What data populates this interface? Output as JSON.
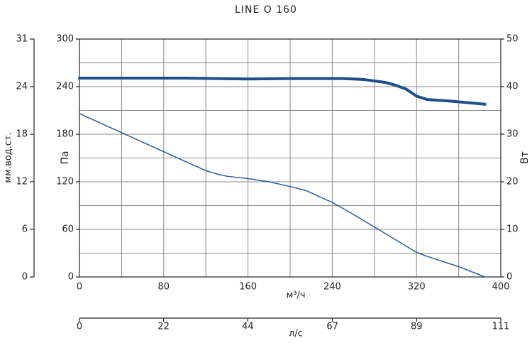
{
  "chart_data": {
    "type": "line",
    "title": "LINE O 160",
    "xlabel": "м³/ч",
    "ylabel": "Па",
    "y2label": "Вт",
    "y3label": "мм.вод.ст.",
    "x2label": "л/с",
    "xlim": [
      0,
      400
    ],
    "xticks": [
      0,
      80,
      160,
      240,
      320,
      400
    ],
    "xminor": [
      40,
      120,
      200,
      280,
      360
    ],
    "ylim": [
      0,
      300
    ],
    "yticks": [
      0,
      60,
      120,
      180,
      240,
      300
    ],
    "yminor": [
      30,
      90,
      150,
      210,
      270
    ],
    "y2lim": [
      0,
      50
    ],
    "y2ticks": [
      0,
      10,
      20,
      30,
      40,
      50
    ],
    "y3lim": [
      0,
      30.59
    ],
    "y3ticks": [
      0,
      {
        "value": 6.12,
        "label": "6"
      },
      {
        "value": 12.24,
        "label": "12"
      },
      {
        "value": 18.35,
        "label": "18"
      },
      {
        "value": 24.47,
        "label": "24"
      },
      {
        "value": 30.59,
        "label": "31"
      }
    ],
    "x2lim": [
      0,
      111.1
    ],
    "x2ticks": [
      0,
      {
        "value": 22.2,
        "label": "22"
      },
      {
        "value": 44.4,
        "label": "44"
      },
      {
        "value": 66.7,
        "label": "67"
      },
      {
        "value": 88.9,
        "label": "89"
      },
      {
        "value": 111.1,
        "label": "111"
      }
    ],
    "grid": true,
    "series": [
      {
        "color": "#2a5a9a",
        "width": 1.5,
        "x": [
          0,
          40,
          80,
          120,
          130,
          140,
          160,
          180,
          200,
          215,
          240,
          260,
          280,
          300,
          320,
          330,
          360,
          385
        ],
        "values": [
          206,
          182,
          158,
          134,
          130,
          127,
          124,
          120,
          114,
          109,
          94,
          79,
          63,
          47,
          31,
          26,
          13,
          0
        ]
      },
      {
        "color": "#1f4e8c",
        "width": 4,
        "axis": "y2",
        "x": [
          0,
          100,
          160,
          200,
          250,
          270,
          290,
          300,
          310,
          320,
          330,
          350,
          370,
          385
        ],
        "values": [
          41.8,
          41.8,
          41.6,
          41.7,
          41.7,
          41.5,
          40.9,
          40.3,
          39.5,
          38.0,
          37.3,
          37.0,
          36.6,
          36.3
        ]
      }
    ]
  }
}
